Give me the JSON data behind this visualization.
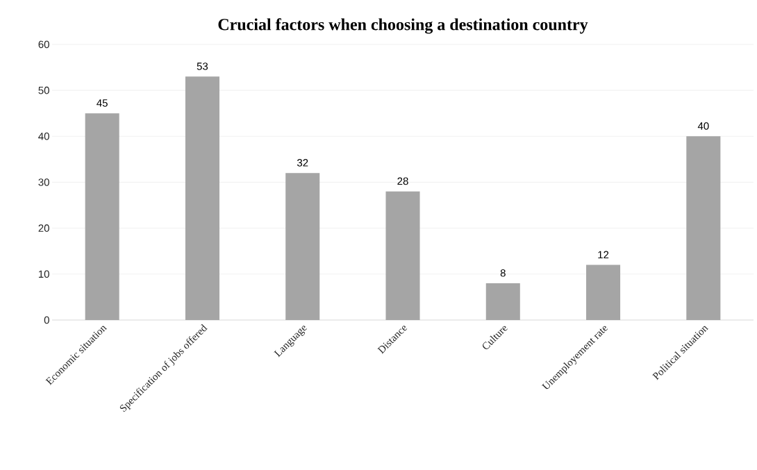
{
  "chart_data": {
    "type": "bar",
    "title": "Crucial factors when choosing a destination country",
    "categories": [
      "Economic situation",
      "Specification of jobs offered",
      "Language",
      "Distance",
      "Culture",
      "Unemployement rate",
      "Political situation"
    ],
    "values": [
      45,
      53,
      32,
      28,
      8,
      12,
      40
    ],
    "color": "#a5a5a5",
    "ylim": [
      0,
      60
    ],
    "yticks": [
      0,
      10,
      20,
      30,
      40,
      50,
      60
    ],
    "grid": "y",
    "data_labels": true
  }
}
